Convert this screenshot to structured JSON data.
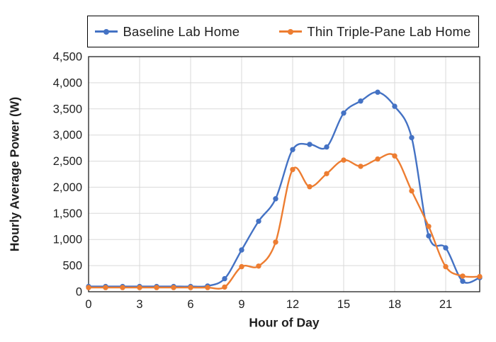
{
  "chart_data": {
    "type": "line",
    "title": "",
    "x": [
      0,
      1,
      2,
      3,
      4,
      5,
      6,
      7,
      8,
      9,
      10,
      11,
      12,
      13,
      14,
      15,
      16,
      17,
      18,
      19,
      20,
      21,
      22,
      23
    ],
    "series": [
      {
        "name": "Baseline Lab Home",
        "color": "#4472C4",
        "values": [
          100,
          100,
          100,
          100,
          100,
          100,
          100,
          110,
          250,
          800,
          1350,
          1780,
          2720,
          2820,
          2770,
          3420,
          3650,
          3820,
          3550,
          2950,
          1070,
          840,
          200,
          270
        ]
      },
      {
        "name": "Thin Triple-Pane Lab Home",
        "color": "#ED7D31",
        "values": [
          80,
          80,
          80,
          80,
          80,
          80,
          80,
          80,
          90,
          480,
          490,
          950,
          2340,
          2010,
          2260,
          2520,
          2400,
          2540,
          2600,
          1930,
          1250,
          480,
          300,
          290
        ]
      }
    ],
    "xlabel": "Hour of Day",
    "ylabel": "Hourly Average Power (W)",
    "xlim": [
      0,
      23
    ],
    "ylim": [
      0,
      4500
    ],
    "grid": true,
    "legend_position": "top",
    "xtick_values": [
      0,
      3,
      6,
      9,
      12,
      15,
      18,
      21
    ],
    "xtick_labels": [
      "0",
      "3",
      "6",
      "9",
      "12",
      "15",
      "18",
      "21"
    ],
    "ytick_values": [
      0,
      500,
      1000,
      1500,
      2000,
      2500,
      3000,
      3500,
      4000,
      4500
    ],
    "ytick_labels": [
      "0",
      "500",
      "1,000",
      "1,500",
      "2,000",
      "2,500",
      "3,000",
      "3,500",
      "4,000",
      "4,500"
    ],
    "colors": {
      "gridline": "#D9D9D9",
      "plot_border": "#1f1f1f",
      "tick_text": "#1f1f1f"
    }
  }
}
